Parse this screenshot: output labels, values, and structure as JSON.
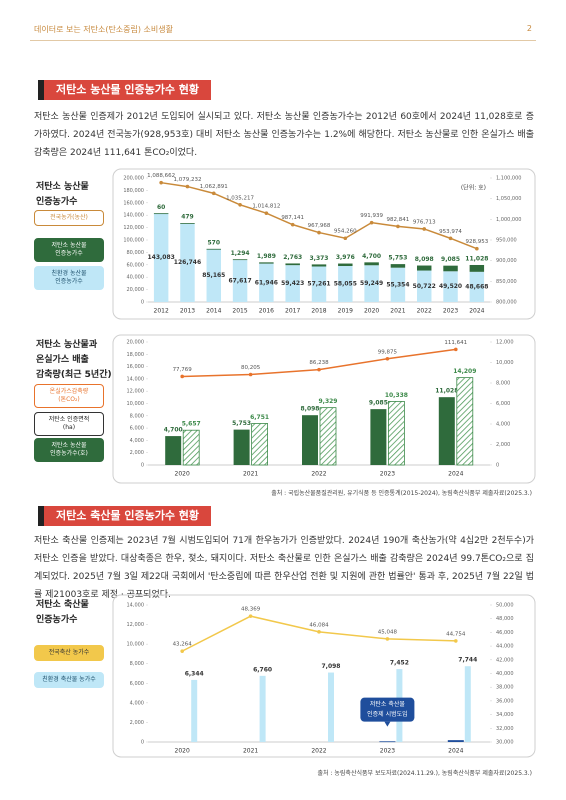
{
  "header": {
    "title": "데이터로 보는 저탄소(탄소중립) 소비생활",
    "page": "2"
  },
  "sections": [
    {
      "title": "저탄소 농산물 인증농가수 현황",
      "paragraph": "저탄소 농산물 인증제가 2012년 도입되어 실시되고 있다. 저탄소 농산물 인증농가수는 2012년 60호에서 2024년 11,028호로 증가하였다. 2024년 전국농가(928,953호) 대비 저탄소 농산물 인증농가수는 1.2%에 해당한다. 저탄소 농산물로 인한 온실가스 배출 감축량은 2024년 111,641 톤CO₂이었다."
    },
    {
      "title": "저탄소 축산물 인증농가수 현황",
      "paragraph": "저탄소 축산물 인증제는 2023년 7월 시범도입되어 71개 한우농가가 인증받았다. 2024년 190개 축산농가(약 4십2만 2천두수)가 저탄소 인증을 받았다. 대상축종은 한우, 젖소, 돼지이다. 저탄소 축산물로 인한 온실가스 배출 감축량은 2024년 99.7톤CO₂으로 집계되었다. 2025년 7월 3일 제22대 국회에서 '탄소중립에 따른 한우산업 전환 및 지원에 관한 법률안' 통과 후, 2025년 7월 22일 법률 제21003호로 제정 · 공포되었다."
    }
  ],
  "chart_data": [
    {
      "type": "bar",
      "title": "저탄소 농산물\n인증농가수",
      "unit": "(단위: 호)",
      "stacked": true,
      "categories": [
        "2012",
        "2013",
        "2014",
        "2015",
        "2016",
        "2017",
        "2018",
        "2019",
        "2020",
        "2021",
        "2022",
        "2023",
        "2024"
      ],
      "series": [
        {
          "name": "전국농가(농산)",
          "type": "line",
          "axis": "y2",
          "color": "#c98a3a",
          "values": [
            1088662,
            1079232,
            1062891,
            1035217,
            1014812,
            987141,
            967968,
            954260,
            991939,
            982841,
            976713,
            953974,
            928953
          ],
          "value_labels": [
            "1,088,662",
            "1,079,232",
            "1,062,891",
            "1,035,217",
            "1,014,812",
            "987,141",
            "967,968",
            "954,260",
            "991,939",
            "982,841",
            "976,713",
            "953,974",
            "928,953"
          ]
        },
        {
          "name": "저탄소 농산물\n인증농가수",
          "type": "bar",
          "color": "#2f6b3c",
          "values": [
            60,
            479,
            570,
            1294,
            1989,
            2763,
            3373,
            3976,
            4700,
            5753,
            8098,
            9085,
            11028
          ],
          "value_labels": [
            "60",
            "479",
            "570",
            "1,294",
            "1,989",
            "2,763",
            "3,373",
            "3,976",
            "4,700",
            "5,753",
            "8,098",
            "9,085",
            "11,028"
          ]
        },
        {
          "name": "친환경 농산물\n인증농가수",
          "type": "bar",
          "color": "#bfe7f7",
          "values": [
            143083,
            126746,
            85165,
            67617,
            61946,
            59423,
            57261,
            58055,
            59249,
            55354,
            50722,
            49520,
            48668
          ],
          "value_labels": [
            "143,083",
            "126,746",
            "85,165",
            "67,617",
            "61,946",
            "59,423",
            "57,261",
            "58,055",
            "59,249",
            "55,354",
            "50,722",
            "49,520",
            "48,668"
          ]
        }
      ],
      "ylim": [
        0,
        200000
      ],
      "yticks": [
        0,
        {
          "value": 20000,
          "label": "20,000"
        },
        {
          "value": 40000,
          "label": "40,000"
        },
        {
          "value": 60000,
          "label": "60,000"
        },
        {
          "value": 80000,
          "label": "80,000"
        },
        {
          "value": 100000,
          "label": "100,000"
        },
        {
          "value": 120000,
          "label": "120,000"
        },
        {
          "value": 140000,
          "label": "140,000"
        },
        {
          "value": 160000,
          "label": "160,000"
        },
        {
          "value": 180000,
          "label": "180,000"
        },
        {
          "value": 200000,
          "label": "200,000"
        }
      ],
      "y2lim": [
        800000,
        1100000
      ],
      "y2ticks": [
        {
          "value": 800000,
          "label": "800,000"
        },
        {
          "value": 850000,
          "label": "850,000"
        },
        {
          "value": 900000,
          "label": "900,000"
        },
        {
          "value": 950000,
          "label": "950,000"
        },
        {
          "value": 1000000,
          "label": "1,000,000"
        },
        {
          "value": 1050000,
          "label": "1,050,000"
        },
        {
          "value": 1100000,
          "label": "1,100,000"
        }
      ]
    },
    {
      "type": "bar",
      "title": "저탄소 농산물과\n온실가스 배출\n감축량(최근 5년간)",
      "categories": [
        "2020",
        "2021",
        "2022",
        "2023",
        "2024"
      ],
      "series": [
        {
          "name": "온실가스감축량\n(톤CO₂)",
          "type": "line",
          "color": "#e8732c",
          "values": [
            77769,
            80205,
            86238,
            99875,
            111641
          ],
          "value_labels": [
            "77,769",
            "80,205",
            "86,238",
            "99,875",
            "111,641"
          ]
        },
        {
          "name": "저탄소 인증면적\n(ha)",
          "type": "bar",
          "pattern": "hatch",
          "color": "#3d8a4a",
          "values": [
            5657,
            6751,
            9329,
            10338,
            14209
          ],
          "value_labels": [
            "5,657",
            "6,751",
            "9,329",
            "10,338",
            "14,209"
          ]
        },
        {
          "name": "저탄소 농산물\n인증농가수(호)",
          "type": "bar",
          "color": "#2f6b3c",
          "values": [
            4700,
            5753,
            8098,
            9085,
            11028
          ],
          "value_labels": [
            "4,700",
            "5,753",
            "8,098",
            "9,085",
            "11,028"
          ]
        }
      ],
      "ylim": [
        0,
        20000
      ],
      "yticks": [
        0,
        {
          "value": 2000,
          "label": "2,000"
        },
        {
          "value": 4000,
          "label": "4,000"
        },
        {
          "value": 6000,
          "label": "6,000"
        },
        {
          "value": 8000,
          "label": "8,000"
        },
        {
          "value": 10000,
          "label": "10,000"
        },
        {
          "value": 12000,
          "label": "12,000"
        },
        {
          "value": 14000,
          "label": "14,000"
        },
        {
          "value": 16000,
          "label": "16,000"
        },
        {
          "value": 18000,
          "label": "18,000"
        },
        {
          "value": 20000,
          "label": "20,000"
        }
      ],
      "y2lim": [
        0,
        12000
      ],
      "y2ticks": [
        0,
        {
          "value": 2000,
          "label": "2,000"
        },
        {
          "value": 4000,
          "label": "4,000"
        },
        {
          "value": 6000,
          "label": "6,000"
        },
        {
          "value": 8000,
          "label": "8,000"
        },
        {
          "value": 10000,
          "label": "10,000"
        },
        {
          "value": 12000,
          "label": "12,000"
        }
      ],
      "source": "출처 : 국립농산물품질관리원, 유기식품 등 인증통계(2015-2024), 농림축산식품부 제출자료(2025.3.)"
    },
    {
      "type": "bar",
      "title": "저탄소 축산물\n인증농가수",
      "categories": [
        "2020",
        "2021",
        "2022",
        "2023",
        "2024"
      ],
      "series": [
        {
          "name": "전국축산 농가수",
          "type": "line",
          "axis": "y2",
          "color": "#f2c84b",
          "values": [
            43264,
            48369,
            46084,
            45048,
            44754
          ],
          "value_labels": [
            "43,264",
            "48,369",
            "46,084",
            "45,048",
            "44,754"
          ]
        },
        {
          "name": "친환경 축산물 농가수",
          "type": "bar",
          "color": "#bfe7f7",
          "values": [
            6344,
            6760,
            7098,
            7452,
            7744
          ],
          "value_labels": [
            "6,344",
            "6,760",
            "7,098",
            "7,452",
            "7,744"
          ]
        },
        {
          "type": "bar",
          "color": "#1f4e9c",
          "values": [
            null,
            null,
            null,
            71,
            190
          ]
        }
      ],
      "annotation": [
        "저탄소 축산물",
        "인증제 시범도입"
      ],
      "ylim": [
        0,
        14000
      ],
      "yticks": [
        0,
        {
          "value": 2000,
          "label": "2,000"
        },
        {
          "value": 4000,
          "label": "4,000"
        },
        {
          "value": 6000,
          "label": "6,000"
        },
        {
          "value": 8000,
          "label": "8,000"
        },
        {
          "value": 10000,
          "label": "10,000"
        },
        {
          "value": 12000,
          "label": "12,000"
        },
        {
          "value": 14000,
          "label": "14,000"
        }
      ],
      "y2lim": [
        30000,
        50000
      ],
      "y2ticks": [
        {
          "value": 30000,
          "label": "30,000"
        },
        {
          "value": 32000,
          "label": "32,000"
        },
        {
          "value": 34000,
          "label": "34,000"
        },
        {
          "value": 36000,
          "label": "36,000"
        },
        {
          "value": 38000,
          "label": "38,000"
        },
        {
          "value": 40000,
          "label": "40,000"
        },
        {
          "value": 42000,
          "label": "42,000"
        },
        {
          "value": 44000,
          "label": "44,000"
        },
        {
          "value": 46000,
          "label": "46,000"
        },
        {
          "value": 48000,
          "label": "48,000"
        },
        {
          "value": 50000,
          "label": "50,000"
        }
      ],
      "source": "출처 : 농림축산식품부 보도자료(2024.11.29.), 농림축산식품부 제출자료(2025.3.)"
    }
  ]
}
